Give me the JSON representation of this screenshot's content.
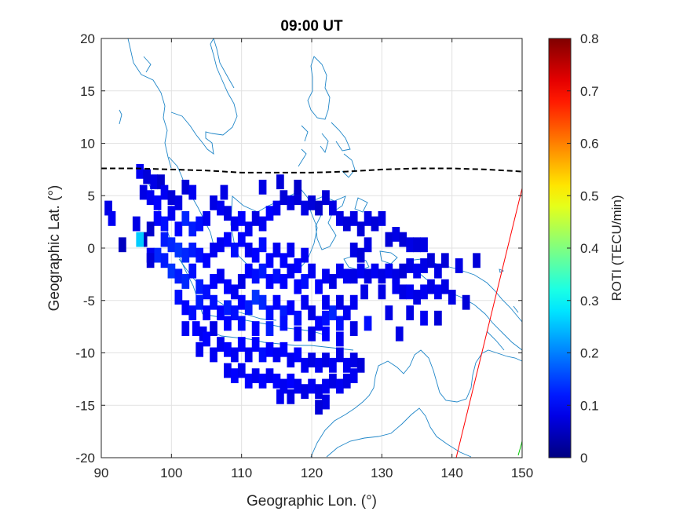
{
  "chart_data": {
    "type": "heatmap",
    "title": "09:00 UT",
    "xlabel": "Geographic Lon. (°)",
    "ylabel": "Geographic Lat. (°)",
    "xlim": [
      90,
      150
    ],
    "ylim": [
      -20,
      20
    ],
    "xticks": [
      "90",
      "100",
      "110",
      "120",
      "130",
      "140",
      "150"
    ],
    "yticks": [
      "20",
      "15",
      "10",
      "5",
      "0",
      "-5",
      "-10",
      "-15",
      "-20"
    ],
    "grid": true,
    "colorbar": {
      "label": "ROTI (TECU/min)",
      "colormap": "jet",
      "clim": [
        0,
        0.8
      ],
      "ticks": [
        "0.8",
        "0.7",
        "0.6",
        "0.5",
        "0.4",
        "0.3",
        "0.2",
        "0.1",
        "0"
      ]
    },
    "dip_equator": {
      "style": "dashed",
      "color": "#000000",
      "lon": [
        90,
        95,
        100,
        105,
        110,
        115,
        120,
        125,
        130,
        135,
        140,
        145,
        150
      ],
      "lat": [
        7.6,
        7.6,
        7.5,
        7.4,
        7.2,
        7.2,
        7.2,
        7.3,
        7.5,
        7.6,
        7.6,
        7.5,
        7.3
      ]
    },
    "boundary_line": {
      "color": "#ff0000",
      "lon": [
        140.6,
        150
      ],
      "lat": [
        -20,
        5.7
      ]
    },
    "cells": [
      [
        95.5,
        7.5,
        0.09
      ],
      [
        96.5,
        7.0,
        0.07
      ],
      [
        97.5,
        6.5,
        0.08
      ],
      [
        98.5,
        6.5,
        0.06
      ],
      [
        96.0,
        5.5,
        0.08
      ],
      [
        97.0,
        5.0,
        0.09
      ],
      [
        98.0,
        4.5,
        0.1
      ],
      [
        99.0,
        5.5,
        0.09
      ],
      [
        100.0,
        5.0,
        0.07
      ],
      [
        101.0,
        4.5,
        0.08
      ],
      [
        102.0,
        6.0,
        0.07
      ],
      [
        103.0,
        5.5,
        0.09
      ],
      [
        98.0,
        3.0,
        0.1
      ],
      [
        99.0,
        2.5,
        0.11
      ],
      [
        100.0,
        3.5,
        0.09
      ],
      [
        101.0,
        2.0,
        0.1
      ],
      [
        102.0,
        3.0,
        0.13
      ],
      [
        103.0,
        2.0,
        0.12
      ],
      [
        104.0,
        2.5,
        0.11
      ],
      [
        105.0,
        3.0,
        0.09
      ],
      [
        97.0,
        2.0,
        0.06
      ],
      [
        96.0,
        1.0,
        0.05
      ],
      [
        95.5,
        1.0,
        0.26
      ],
      [
        99.0,
        1.0,
        0.12
      ],
      [
        100.0,
        0.5,
        0.13
      ],
      [
        101.0,
        0.0,
        0.14
      ],
      [
        102.0,
        -0.5,
        0.13
      ],
      [
        103.0,
        0.0,
        0.12
      ],
      [
        104.0,
        -0.5,
        0.11
      ],
      [
        105.0,
        -1.0,
        0.1
      ],
      [
        106.0,
        0.0,
        0.09
      ],
      [
        107.0,
        0.5,
        0.09
      ],
      [
        98.0,
        -0.5,
        0.13
      ],
      [
        99.0,
        -1.0,
        0.12
      ],
      [
        100.0,
        -2.0,
        0.14
      ],
      [
        101.0,
        -2.5,
        0.12
      ],
      [
        102.0,
        -3.0,
        0.13
      ],
      [
        103.0,
        -2.0,
        0.11
      ],
      [
        104.0,
        -3.5,
        0.12
      ],
      [
        105.0,
        -4.0,
        0.11
      ],
      [
        106.0,
        -3.0,
        0.1
      ],
      [
        107.0,
        -2.5,
        0.09
      ],
      [
        108.0,
        -3.5,
        0.1
      ],
      [
        109.0,
        -4.0,
        0.09
      ],
      [
        110.0,
        -3.0,
        0.08
      ],
      [
        101.0,
        -4.5,
        0.11
      ],
      [
        102.0,
        -5.5,
        0.1
      ],
      [
        103.0,
        -6.0,
        0.11
      ],
      [
        104.0,
        -5.0,
        0.12
      ],
      [
        105.0,
        -6.0,
        0.1
      ],
      [
        106.0,
        -5.0,
        0.11
      ],
      [
        107.0,
        -6.0,
        0.1
      ],
      [
        108.0,
        -5.5,
        0.12
      ],
      [
        109.0,
        -6.0,
        0.11
      ],
      [
        110.0,
        -5.0,
        0.1
      ],
      [
        111.0,
        -5.5,
        0.12
      ],
      [
        112.0,
        -4.5,
        0.14
      ],
      [
        113.0,
        -5.0,
        0.13
      ],
      [
        114.0,
        -6.0,
        0.11
      ],
      [
        115.0,
        -5.0,
        0.1
      ],
      [
        116.0,
        -6.0,
        0.12
      ],
      [
        117.0,
        -5.5,
        0.1
      ],
      [
        118.0,
        -6.5,
        0.11
      ],
      [
        119.0,
        -5.0,
        0.09
      ],
      [
        120.0,
        -6.0,
        0.08
      ],
      [
        121.0,
        -7.0,
        0.1
      ],
      [
        122.0,
        -6.5,
        0.11
      ],
      [
        123.0,
        -6.0,
        0.13
      ],
      [
        124.0,
        -7.0,
        0.11
      ],
      [
        125.0,
        -6.0,
        0.09
      ],
      [
        103.5,
        -7.5,
        0.1
      ],
      [
        104.5,
        -8.0,
        0.09
      ],
      [
        102.0,
        -7.5,
        0.09
      ],
      [
        106.0,
        -7.5,
        0.08
      ],
      [
        108.0,
        -7.0,
        0.1
      ],
      [
        110.0,
        -7.0,
        0.11
      ],
      [
        112.0,
        -7.5,
        0.1
      ],
      [
        114.0,
        -7.5,
        0.12
      ],
      [
        116.0,
        -7.0,
        0.11
      ],
      [
        118.0,
        -8.0,
        0.09
      ],
      [
        120.0,
        -8.0,
        0.08
      ],
      [
        122.0,
        -8.0,
        0.1
      ],
      [
        124.0,
        -8.5,
        0.09
      ],
      [
        126.0,
        -7.5,
        0.08
      ],
      [
        128.0,
        -7.0,
        0.11
      ],
      [
        106.0,
        4.5,
        0.08
      ],
      [
        107.0,
        4.0,
        0.09
      ],
      [
        108.0,
        3.5,
        0.08
      ],
      [
        109.0,
        2.5,
        0.09
      ],
      [
        110.0,
        3.0,
        0.1
      ],
      [
        111.0,
        2.0,
        0.09
      ],
      [
        112.0,
        3.0,
        0.08
      ],
      [
        113.0,
        2.5,
        0.09
      ],
      [
        114.0,
        3.5,
        0.1
      ],
      [
        115.0,
        4.0,
        0.09
      ],
      [
        116.0,
        5.0,
        0.07
      ],
      [
        117.0,
        4.5,
        0.08
      ],
      [
        118.0,
        5.0,
        0.07
      ],
      [
        119.0,
        4.0,
        0.08
      ],
      [
        120.0,
        4.5,
        0.07
      ],
      [
        121.0,
        4.0,
        0.06
      ],
      [
        122.0,
        5.0,
        0.07
      ],
      [
        123.0,
        4.0,
        0.08
      ],
      [
        108.0,
        1.0,
        0.1
      ],
      [
        109.0,
        0.0,
        0.11
      ],
      [
        110.0,
        1.0,
        0.1
      ],
      [
        111.0,
        0.0,
        0.09
      ],
      [
        112.0,
        -0.5,
        0.1
      ],
      [
        113.0,
        0.5,
        0.11
      ],
      [
        114.0,
        -1.0,
        0.1
      ],
      [
        115.0,
        0.0,
        0.09
      ],
      [
        116.0,
        -1.0,
        0.1
      ],
      [
        117.0,
        0.0,
        0.09
      ],
      [
        118.0,
        -1.5,
        0.1
      ],
      [
        119.0,
        -0.5,
        0.09
      ],
      [
        111.0,
        -2.0,
        0.1
      ],
      [
        112.0,
        -2.5,
        0.11
      ],
      [
        113.0,
        -2.0,
        0.12
      ],
      [
        114.0,
        -3.0,
        0.1
      ],
      [
        115.0,
        -2.5,
        0.11
      ],
      [
        116.0,
        -3.0,
        0.1
      ],
      [
        117.0,
        -2.0,
        0.09
      ],
      [
        118.0,
        -3.5,
        0.1
      ],
      [
        119.0,
        -3.0,
        0.11
      ],
      [
        120.0,
        -2.0,
        0.09
      ],
      [
        121.0,
        -3.5,
        0.1
      ],
      [
        122.0,
        -2.5,
        0.09
      ],
      [
        123.0,
        -3.0,
        0.08
      ],
      [
        124.0,
        -2.0,
        0.09
      ],
      [
        124.0,
        3.0,
        0.08
      ],
      [
        125.0,
        2.5,
        0.07
      ],
      [
        126.0,
        3.0,
        0.08
      ],
      [
        127.0,
        2.0,
        0.07
      ],
      [
        128.0,
        3.0,
        0.08
      ],
      [
        129.0,
        2.5,
        0.07
      ],
      [
        130.0,
        3.0,
        0.08
      ],
      [
        131.0,
        1.0,
        0.07
      ],
      [
        132.0,
        1.5,
        0.08
      ],
      [
        133.0,
        1.0,
        0.07
      ],
      [
        134.0,
        0.5,
        0.08
      ],
      [
        135.0,
        0.5,
        0.07
      ],
      [
        136.0,
        0.5,
        0.08
      ],
      [
        126.0,
        0.0,
        0.08
      ],
      [
        127.0,
        -0.5,
        0.07
      ],
      [
        128.0,
        0.5,
        0.08
      ],
      [
        125.0,
        -2.5,
        0.09
      ],
      [
        126.0,
        -2.5,
        0.08
      ],
      [
        127.0,
        -2.0,
        0.09
      ],
      [
        128.0,
        -2.5,
        0.08
      ],
      [
        129.0,
        -2.0,
        0.09
      ],
      [
        130.0,
        -2.5,
        0.08
      ],
      [
        131.0,
        -2.0,
        0.09
      ],
      [
        132.0,
        -2.5,
        0.08
      ],
      [
        133.0,
        -2.0,
        0.07
      ],
      [
        134.0,
        -1.5,
        0.08
      ],
      [
        135.0,
        -2.0,
        0.09
      ],
      [
        136.0,
        -1.5,
        0.08
      ],
      [
        137.0,
        -1.0,
        0.07
      ],
      [
        138.0,
        -2.0,
        0.08
      ],
      [
        139.0,
        -1.0,
        0.07
      ],
      [
        132.0,
        -3.5,
        0.09
      ],
      [
        133.0,
        -4.0,
        0.08
      ],
      [
        134.0,
        -4.0,
        0.09
      ],
      [
        135.0,
        -4.5,
        0.08
      ],
      [
        136.0,
        -4.0,
        0.09
      ],
      [
        137.0,
        -3.5,
        0.08
      ],
      [
        138.0,
        -4.0,
        0.09
      ],
      [
        139.0,
        -3.5,
        0.08
      ],
      [
        141.0,
        -1.5,
        0.08
      ],
      [
        143.5,
        -1.0,
        0.07
      ],
      [
        134.0,
        -6.0,
        0.08
      ],
      [
        136.0,
        -6.5,
        0.09
      ],
      [
        138.0,
        -6.5,
        0.07
      ],
      [
        131.0,
        -6.0,
        0.08
      ],
      [
        132.5,
        -8.0,
        0.08
      ],
      [
        127.5,
        -4.0,
        0.08
      ],
      [
        130.0,
        -4.0,
        0.08
      ],
      [
        140.0,
        -4.5,
        0.08
      ],
      [
        142.0,
        -5.0,
        0.07
      ],
      [
        122.0,
        -5.0,
        0.09
      ],
      [
        124.0,
        -5.0,
        0.08
      ],
      [
        126.0,
        -5.0,
        0.09
      ],
      [
        107.0,
        -9.0,
        0.09
      ],
      [
        108.0,
        -9.5,
        0.1
      ],
      [
        109.0,
        -10.0,
        0.09
      ],
      [
        110.0,
        -9.0,
        0.1
      ],
      [
        111.0,
        -10.0,
        0.09
      ],
      [
        112.0,
        -9.0,
        0.1
      ],
      [
        113.0,
        -10.0,
        0.11
      ],
      [
        114.0,
        -9.5,
        0.1
      ],
      [
        115.0,
        -10.0,
        0.09
      ],
      [
        116.0,
        -9.5,
        0.1
      ],
      [
        117.0,
        -10.5,
        0.09
      ],
      [
        118.0,
        -10.0,
        0.1
      ],
      [
        119.0,
        -11.0,
        0.09
      ],
      [
        120.0,
        -10.5,
        0.08
      ],
      [
        121.0,
        -11.0,
        0.09
      ],
      [
        122.0,
        -10.5,
        0.08
      ],
      [
        123.0,
        -11.0,
        0.09
      ],
      [
        124.0,
        -10.0,
        0.08
      ],
      [
        125.0,
        -11.0,
        0.09
      ],
      [
        126.0,
        -10.5,
        0.08
      ],
      [
        127.0,
        -11.0,
        0.07
      ],
      [
        108.0,
        -11.5,
        0.09
      ],
      [
        109.0,
        -12.0,
        0.1
      ],
      [
        110.0,
        -11.5,
        0.09
      ],
      [
        111.0,
        -12.5,
        0.1
      ],
      [
        112.0,
        -12.0,
        0.09
      ],
      [
        113.0,
        -12.5,
        0.1
      ],
      [
        114.0,
        -12.0,
        0.09
      ],
      [
        115.0,
        -12.5,
        0.1
      ],
      [
        116.0,
        -13.0,
        0.09
      ],
      [
        117.0,
        -12.5,
        0.1
      ],
      [
        118.0,
        -13.0,
        0.09
      ],
      [
        119.0,
        -13.5,
        0.08
      ],
      [
        120.0,
        -13.0,
        0.09
      ],
      [
        121.0,
        -13.5,
        0.08
      ],
      [
        122.0,
        -13.0,
        0.09
      ],
      [
        123.0,
        -12.5,
        0.08
      ],
      [
        124.0,
        -13.0,
        0.09
      ],
      [
        125.0,
        -12.5,
        0.08
      ],
      [
        126.0,
        -12.0,
        0.09
      ],
      [
        122.0,
        -14.5,
        0.08
      ],
      [
        121.0,
        -15.0,
        0.07
      ],
      [
        117.0,
        -14.0,
        0.08
      ],
      [
        115.5,
        -14.0,
        0.09
      ],
      [
        104.0,
        -9.5,
        0.09
      ],
      [
        105.0,
        -8.5,
        0.1
      ],
      [
        106.0,
        -10.0,
        0.09
      ],
      [
        91.0,
        4.0,
        0.08
      ],
      [
        91.5,
        3.0,
        0.09
      ],
      [
        93.0,
        0.5,
        0.05
      ],
      [
        95.0,
        2.5,
        0.08
      ],
      [
        97.0,
        -0.5,
        0.09
      ],
      [
        97.0,
        -1.0,
        0.07
      ],
      [
        115.5,
        6.5,
        0.07
      ],
      [
        113.0,
        6.0,
        0.08
      ],
      [
        118.0,
        6.0,
        0.06
      ],
      [
        107.5,
        5.5,
        0.08
      ]
    ]
  }
}
